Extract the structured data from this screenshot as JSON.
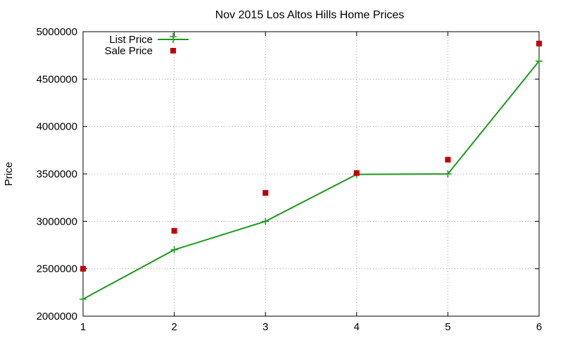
{
  "chart_data": {
    "type": "line",
    "title": "Nov 2015 Los Altos Hills Home Prices",
    "xlabel": "",
    "ylabel": "Price",
    "x": [
      1,
      2,
      3,
      4,
      5,
      6
    ],
    "xlim": [
      1,
      6
    ],
    "ylim": [
      2000000,
      5000000
    ],
    "x_ticks": [
      "1",
      "2",
      "3",
      "4",
      "5",
      "6"
    ],
    "y_ticks": [
      "2000000",
      "2500000",
      "3000000",
      "3500000",
      "4000000",
      "4500000",
      "5000000"
    ],
    "grid": true,
    "legend_position": "top-left",
    "series": [
      {
        "name": "List Price",
        "style": "line+plus",
        "color": "#1a9a1a",
        "values": [
          2180000,
          2700000,
          3000000,
          3495000,
          3500000,
          4690000
        ]
      },
      {
        "name": "Sale Price",
        "style": "square-points",
        "color": "#c00000",
        "values": [
          2500000,
          2900000,
          3300000,
          3510000,
          3650000,
          4875000
        ]
      }
    ]
  }
}
